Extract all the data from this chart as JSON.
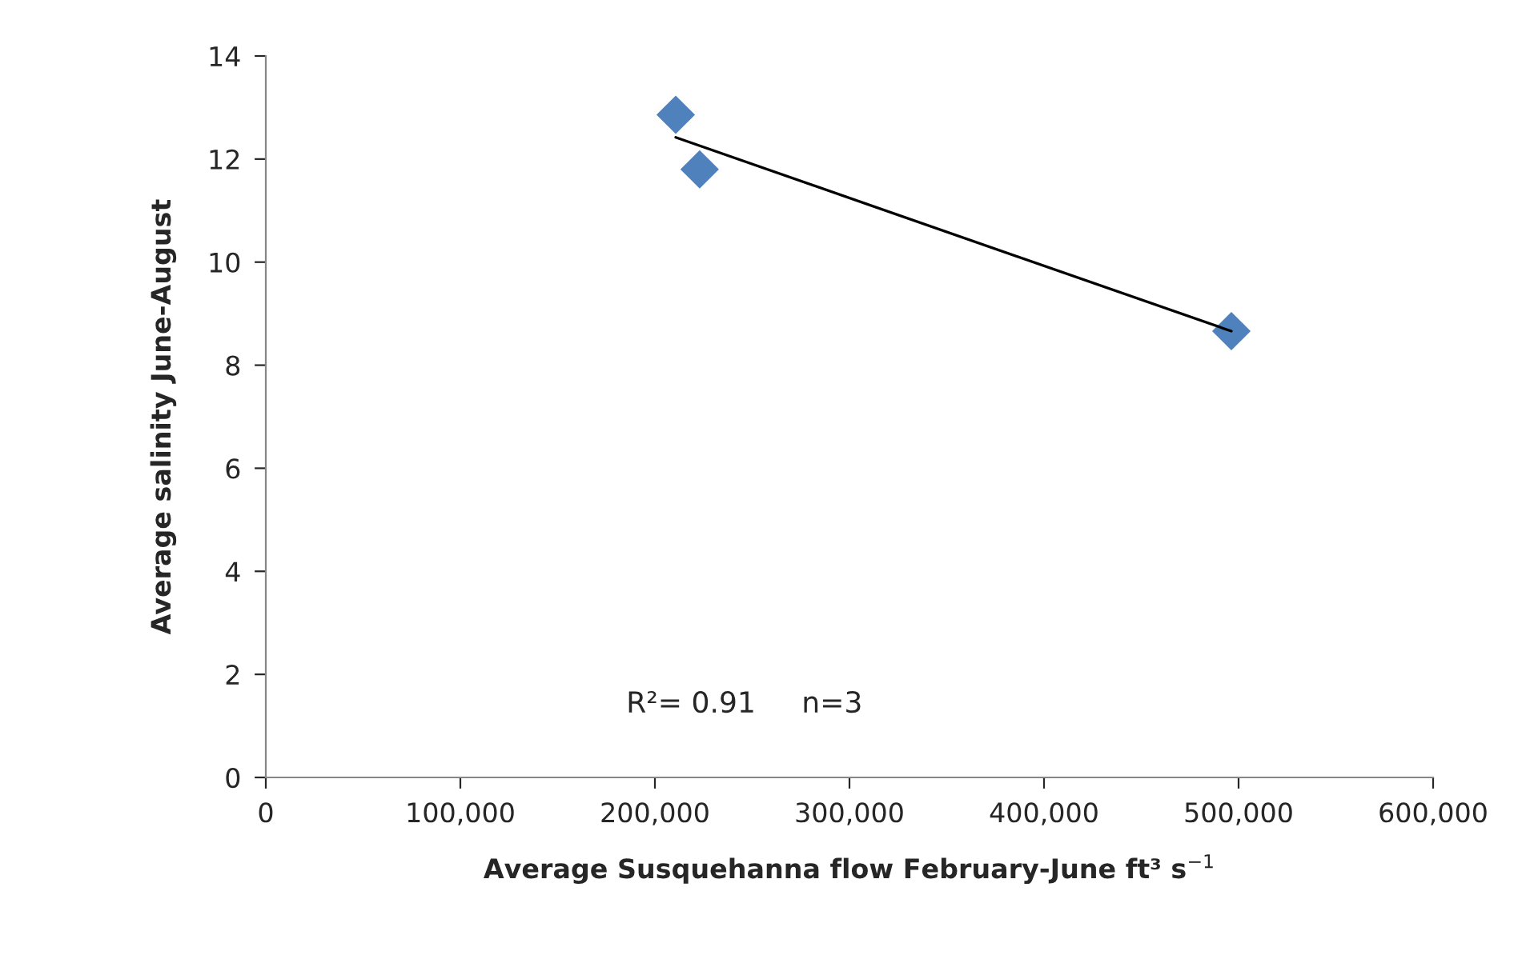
{
  "chart_data": {
    "type": "scatter",
    "xlabel": "Average Susquehanna flow February-June ft³ s$^{−1}$",
    "ylabel": "Average salinity June-August",
    "annotations": [
      "R²= 0.91     n=3"
    ],
    "series": [
      {
        "color": "#4f81bd",
        "marker": "diamond",
        "x": [
          210700,
          223000,
          496300
        ],
        "values": [
          12.86,
          11.8,
          8.66
        ]
      },
      {
        "type": "line",
        "color": "#000000",
        "marker": "none",
        "line_style": "solid",
        "x": [
          210700,
          496300
        ],
        "values": [
          12.42,
          8.66
        ]
      }
    ],
    "xlim": [
      0,
      600000
    ],
    "xticks": [
      {
        "value": 0,
        "label": "0"
      },
      {
        "value": 100000,
        "label": "100,000"
      },
      {
        "value": 200000,
        "label": "200,000"
      },
      {
        "value": 300000,
        "label": "300,000"
      },
      {
        "value": 400000,
        "label": "400,000"
      },
      {
        "value": 500000,
        "label": "500,000"
      },
      {
        "value": 600000,
        "label": "600,000"
      }
    ],
    "ylim": [
      0,
      14
    ],
    "yticks": [
      0,
      2,
      4,
      6,
      8,
      10,
      12,
      14
    ],
    "grid": false,
    "legend": false
  }
}
